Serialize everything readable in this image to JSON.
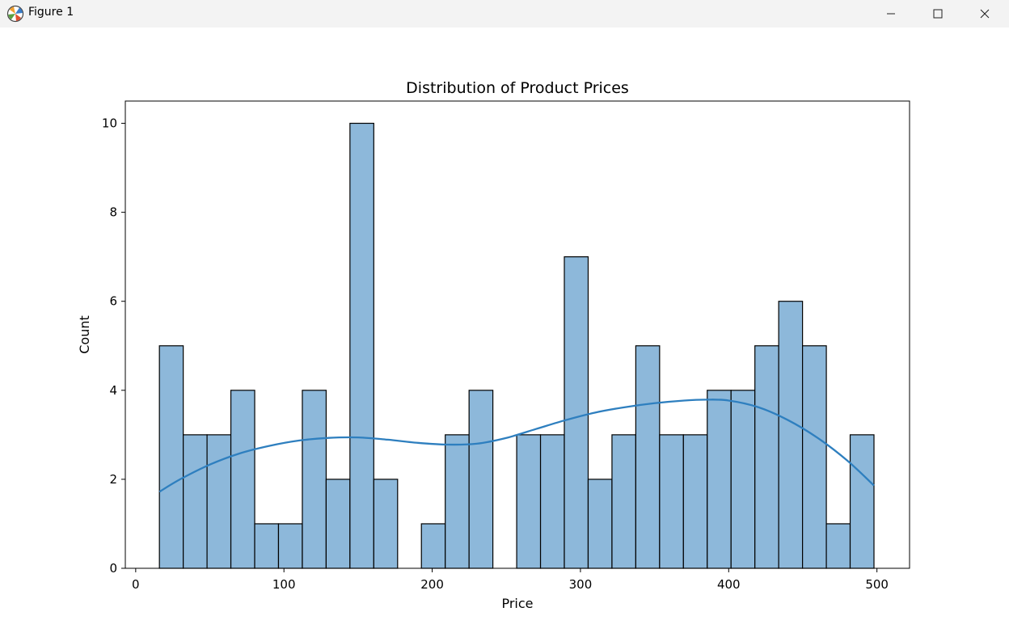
{
  "window": {
    "title": "Figure 1",
    "app_icon": "matplotlib-icon",
    "controls": [
      "minimize-icon",
      "maximize-icon",
      "close-icon"
    ]
  },
  "chart_data": {
    "type": "histogram",
    "title": "Distribution of Product Prices",
    "xlabel": "Price",
    "ylabel": "Count",
    "xlim": [
      -7,
      522
    ],
    "ylim": [
      0,
      10.5
    ],
    "xticks": [
      0,
      100,
      200,
      300,
      400,
      500
    ],
    "yticks": [
      0,
      2,
      4,
      6,
      8,
      10
    ],
    "grid": false,
    "bin_edges": [
      16,
      32.07,
      48.13,
      64.2,
      80.27,
      96.33,
      112.4,
      128.47,
      144.53,
      160.6,
      176.67,
      192.73,
      208.8,
      224.87,
      240.93,
      257,
      273.07,
      289.13,
      305.2,
      321.27,
      337.33,
      353.4,
      369.47,
      385.53,
      401.6,
      417.67,
      433.73,
      449.8,
      465.87,
      481.93,
      498
    ],
    "counts": [
      5,
      3,
      3,
      4,
      1,
      1,
      4,
      2,
      10,
      2,
      0,
      1,
      3,
      4,
      0,
      3,
      3,
      7,
      2,
      3,
      5,
      3,
      3,
      4,
      4,
      5,
      6,
      5,
      1,
      3
    ],
    "bar_color": "#8db8da",
    "bar_edge_color": "#000000",
    "kde": {
      "color": "#2e7fbf",
      "x": [
        16,
        30,
        50,
        70,
        90,
        110,
        130,
        150,
        170,
        190,
        210,
        230,
        250,
        270,
        290,
        310,
        330,
        350,
        370,
        385,
        400,
        420,
        440,
        460,
        480,
        498
      ],
      "y": [
        1.72,
        2.0,
        2.33,
        2.58,
        2.75,
        2.87,
        2.93,
        2.94,
        2.89,
        2.82,
        2.78,
        2.8,
        2.93,
        3.13,
        3.33,
        3.5,
        3.62,
        3.71,
        3.77,
        3.79,
        3.77,
        3.62,
        3.33,
        2.93,
        2.42,
        1.86
      ]
    }
  }
}
